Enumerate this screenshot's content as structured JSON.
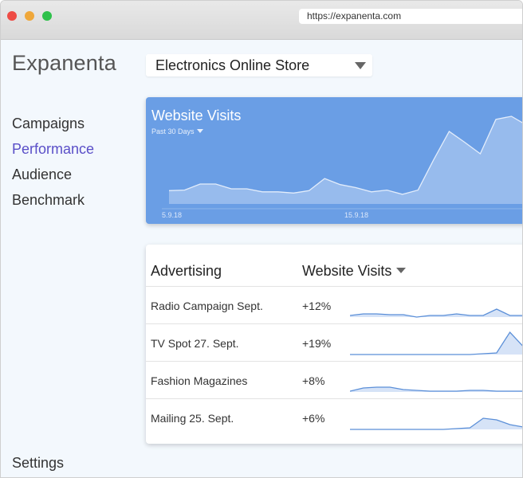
{
  "browser": {
    "url": "https://expanenta.com"
  },
  "app": {
    "logo": "Expanenta"
  },
  "sidebar": {
    "items": [
      {
        "label": "Campaigns",
        "active": false
      },
      {
        "label": "Performance",
        "active": true
      },
      {
        "label": "Audience",
        "active": false
      },
      {
        "label": "Benchmark",
        "active": false
      }
    ],
    "settings": "Settings"
  },
  "store_selector": {
    "value": "Electronics Online Store"
  },
  "visits": {
    "title": "Website Visits",
    "range": "Past 30 Days",
    "dates": [
      "5.9.18",
      "15.9.18"
    ],
    "series": [
      22,
      23,
      33,
      33,
      25,
      25,
      20,
      20,
      18,
      22,
      42,
      32,
      27,
      20,
      23,
      16,
      23,
      73,
      120,
      102,
      83,
      140,
      145,
      130
    ]
  },
  "advertising": {
    "header_name": "Advertising",
    "header_metric": "Website Visits",
    "rows": [
      {
        "name": "Radio Campaign Sept.",
        "change": "+12%",
        "spark": [
          2,
          4,
          4,
          3,
          3,
          0,
          2,
          2,
          4,
          2,
          2,
          10,
          2,
          2,
          2
        ]
      },
      {
        "name": "TV Spot 27. Sept.",
        "change": "+19%",
        "spark": [
          0,
          0,
          0,
          0,
          0,
          0,
          0,
          0,
          0,
          0,
          1,
          2,
          28,
          10,
          4
        ]
      },
      {
        "name": "Fashion Magazines",
        "change": "+8%",
        "spark": [
          1,
          5,
          6,
          6,
          3,
          2,
          1,
          1,
          1,
          2,
          2,
          1,
          1,
          1,
          1
        ]
      },
      {
        "name": "Mailing 25. Sept.",
        "change": "+6%",
        "spark": [
          0,
          0,
          0,
          0,
          0,
          0,
          0,
          0,
          1,
          2,
          14,
          12,
          6,
          3,
          2
        ]
      }
    ]
  },
  "colors": {
    "accent": "#5a4fc8",
    "chart_bg": "#6a9ee5",
    "spark_fill": "#d6e3f7",
    "spark_line": "#5b8fd8"
  },
  "icons": [
    "chevron-down-icon"
  ]
}
